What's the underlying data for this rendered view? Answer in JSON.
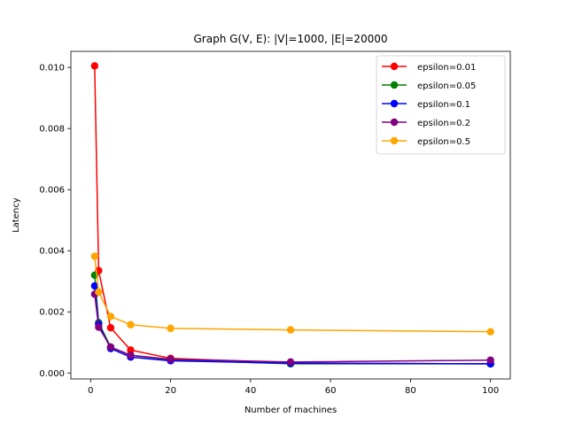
{
  "chart_data": {
    "type": "line",
    "title": "Graph G(V, E): |V|=1000, |E|=20000",
    "xlabel": "Number of machines",
    "ylabel": "Latency",
    "xlim": [
      -4.95,
      104.95
    ],
    "ylim": [
      -0.000195,
      0.010525
    ],
    "xticks": [
      0,
      20,
      40,
      60,
      80,
      100
    ],
    "yticks": [
      0.0,
      0.002,
      0.004,
      0.006,
      0.008,
      0.01
    ],
    "xtick_labels": [
      "0",
      "20",
      "40",
      "60",
      "80",
      "100"
    ],
    "ytick_labels": [
      "0.000",
      "0.002",
      "0.004",
      "0.006",
      "0.008",
      "0.010"
    ],
    "grid": false,
    "legend_position": "top-right",
    "x": [
      1,
      2,
      5,
      10,
      20,
      50,
      100
    ],
    "series": [
      {
        "name": "epsilon=0.01",
        "color": "#ff0000",
        "values": [
          0.01005,
          0.00335,
          0.00148,
          0.00075,
          0.00048,
          0.00033,
          0.0003
        ]
      },
      {
        "name": "epsilon=0.05",
        "color": "#008000",
        "values": [
          0.0032,
          0.00165,
          0.00085,
          0.00058,
          0.00043,
          0.0003,
          0.0003
        ]
      },
      {
        "name": "epsilon=0.1",
        "color": "#0000ff",
        "values": [
          0.00285,
          0.0016,
          0.0008,
          0.00052,
          0.0004,
          0.00032,
          0.0003
        ]
      },
      {
        "name": "epsilon=0.2",
        "color": "#800080",
        "values": [
          0.00258,
          0.0015,
          0.00085,
          0.00058,
          0.00045,
          0.00036,
          0.00042
        ]
      },
      {
        "name": "epsilon=0.5",
        "color": "#ffa500",
        "values": [
          0.00382,
          0.00265,
          0.00185,
          0.00158,
          0.00146,
          0.00141,
          0.00135
        ]
      }
    ]
  }
}
